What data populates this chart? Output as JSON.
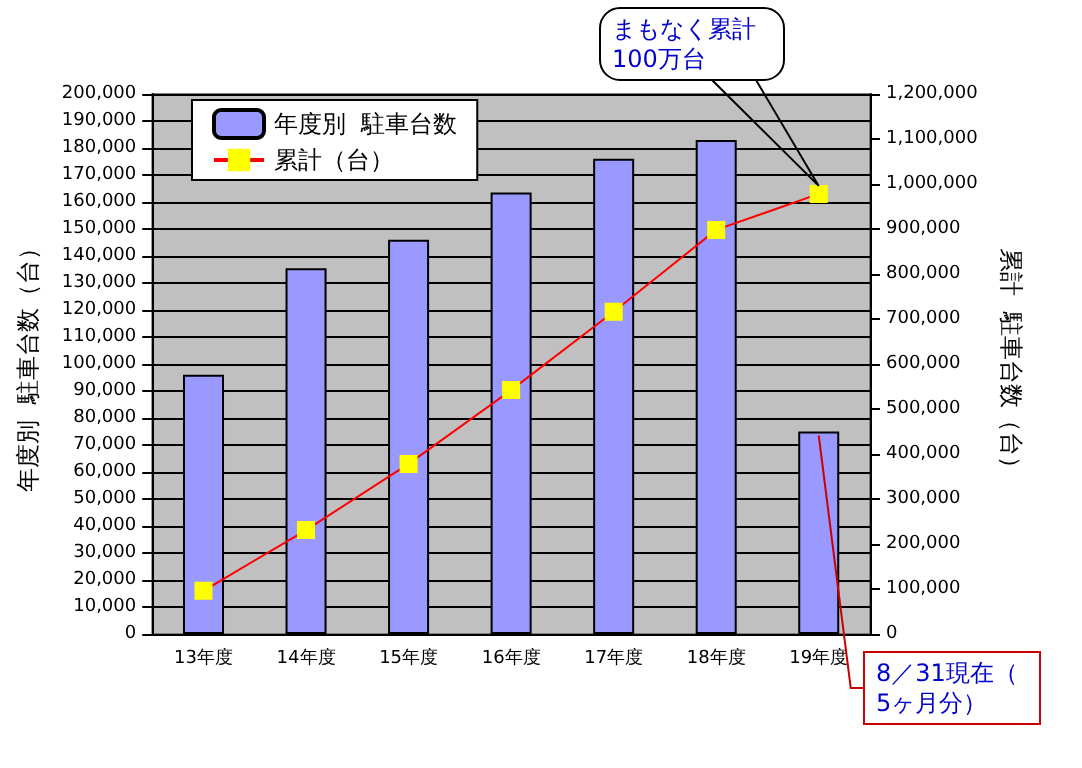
{
  "chart_data": {
    "type": "bar",
    "categories": [
      "13年度",
      "14年度",
      "15年度",
      "16年度",
      "17年度",
      "18年度",
      "19年度"
    ],
    "series": [
      {
        "name": "年度別  駐車台数",
        "color": "#9999ff",
        "values": [
          96000,
          135500,
          146000,
          163500,
          176000,
          183000,
          75000
        ]
      },
      {
        "name": "累計（台）",
        "type": "line",
        "axis": "y2",
        "color": "#ff0000",
        "marker": "square",
        "values": [
          96000,
          231000,
          378000,
          542000,
          716000,
          898000,
          978000
        ]
      }
    ],
    "ylabel": "年度別  駐車台数（台）",
    "y2label": "累計  駐車台数（台）",
    "ylim": [
      0,
      200000
    ],
    "yticks": [
      {
        "value": 0,
        "label": "0"
      },
      {
        "value": 10000,
        "label": "10,000"
      },
      {
        "value": 20000,
        "label": "20,000"
      },
      {
        "value": 30000,
        "label": "30,000"
      },
      {
        "value": 40000,
        "label": "40,000"
      },
      {
        "value": 50000,
        "label": "50,000"
      },
      {
        "value": 60000,
        "label": "60,000"
      },
      {
        "value": 70000,
        "label": "70,000"
      },
      {
        "value": 80000,
        "label": "80,000"
      },
      {
        "value": 90000,
        "label": "90,000"
      },
      {
        "value": 100000,
        "label": "100,000"
      },
      {
        "value": 110000,
        "label": "110,000"
      },
      {
        "value": 120000,
        "label": "120,000"
      },
      {
        "value": 130000,
        "label": "130,000"
      },
      {
        "value": 140000,
        "label": "140,000"
      },
      {
        "value": 150000,
        "label": "150,000"
      },
      {
        "value": 160000,
        "label": "160,000"
      },
      {
        "value": 170000,
        "label": "170,000"
      },
      {
        "value": 180000,
        "label": "180,000"
      },
      {
        "value": 190000,
        "label": "190,000"
      },
      {
        "value": 200000,
        "label": "200,000"
      }
    ],
    "y2lim": [
      0,
      1200000
    ],
    "y2ticks": [
      {
        "value": 0,
        "label": "0"
      },
      {
        "value": 100000,
        "label": "100,000"
      },
      {
        "value": 200000,
        "label": "200,000"
      },
      {
        "value": 300000,
        "label": "300,000"
      },
      {
        "value": 400000,
        "label": "400,000"
      },
      {
        "value": 500000,
        "label": "500,000"
      },
      {
        "value": 600000,
        "label": "600,000"
      },
      {
        "value": 700000,
        "label": "700,000"
      },
      {
        "value": 800000,
        "label": "800,000"
      },
      {
        "value": 900000,
        "label": "900,000"
      },
      {
        "value": 1000000,
        "label": "1,000,000"
      },
      {
        "value": 1100000,
        "label": "1,100,000"
      },
      {
        "value": 1200000,
        "label": "1,200,000"
      }
    ],
    "grid": "y",
    "legend": "top left",
    "annotations": [
      "まもなく累計100万台",
      {
        "text": "8／31現在（5ヶ月分）",
        "x": "19年度",
        "y": 75000
      }
    ]
  }
}
